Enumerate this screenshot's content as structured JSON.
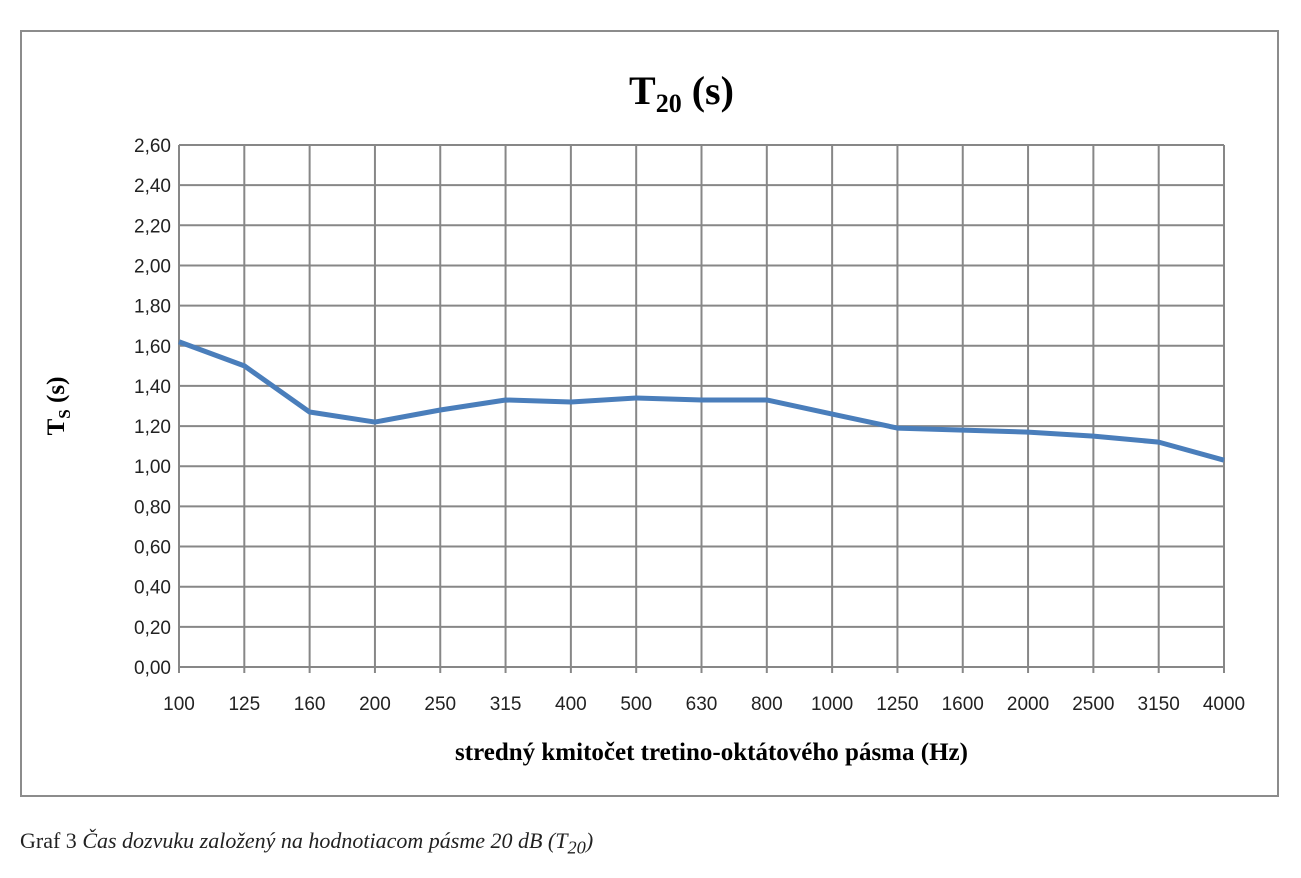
{
  "chart_data": {
    "type": "line",
    "title_main": "T",
    "title_sub": "20",
    "title_tail": " (s)",
    "ylabel_main": "T",
    "ylabel_sub": "S",
    "ylabel_tail": " (s)",
    "xlabel": "stredný kmitočet tretino-oktátového pásma (Hz)",
    "categories": [
      "100",
      "125",
      "160",
      "200",
      "250",
      "315",
      "400",
      "500",
      "630",
      "800",
      "1000",
      "1250",
      "1600",
      "2000",
      "2500",
      "3150",
      "4000"
    ],
    "series": [
      {
        "name": "T20",
        "color": "#4a7ebb",
        "values": [
          1.62,
          1.5,
          1.27,
          1.22,
          1.28,
          1.33,
          1.32,
          1.34,
          1.33,
          1.33,
          1.26,
          1.19,
          1.18,
          1.17,
          1.15,
          1.12,
          1.03
        ]
      }
    ],
    "ylim": [
      0,
      2.6
    ],
    "ytick_step": 0.2,
    "yticks": [
      "0,00",
      "0,20",
      "0,40",
      "0,60",
      "0,80",
      "1,00",
      "1,20",
      "1,40",
      "1,60",
      "1,80",
      "2,00",
      "2,20",
      "2,40",
      "2,60"
    ],
    "grid": true,
    "legend": "none"
  },
  "caption": {
    "prefix": "Graf 3 ",
    "text": "Čas dozvuku založený na hodnotiacom pásme 20 dB (T",
    "sub": "20",
    "end": ")"
  }
}
